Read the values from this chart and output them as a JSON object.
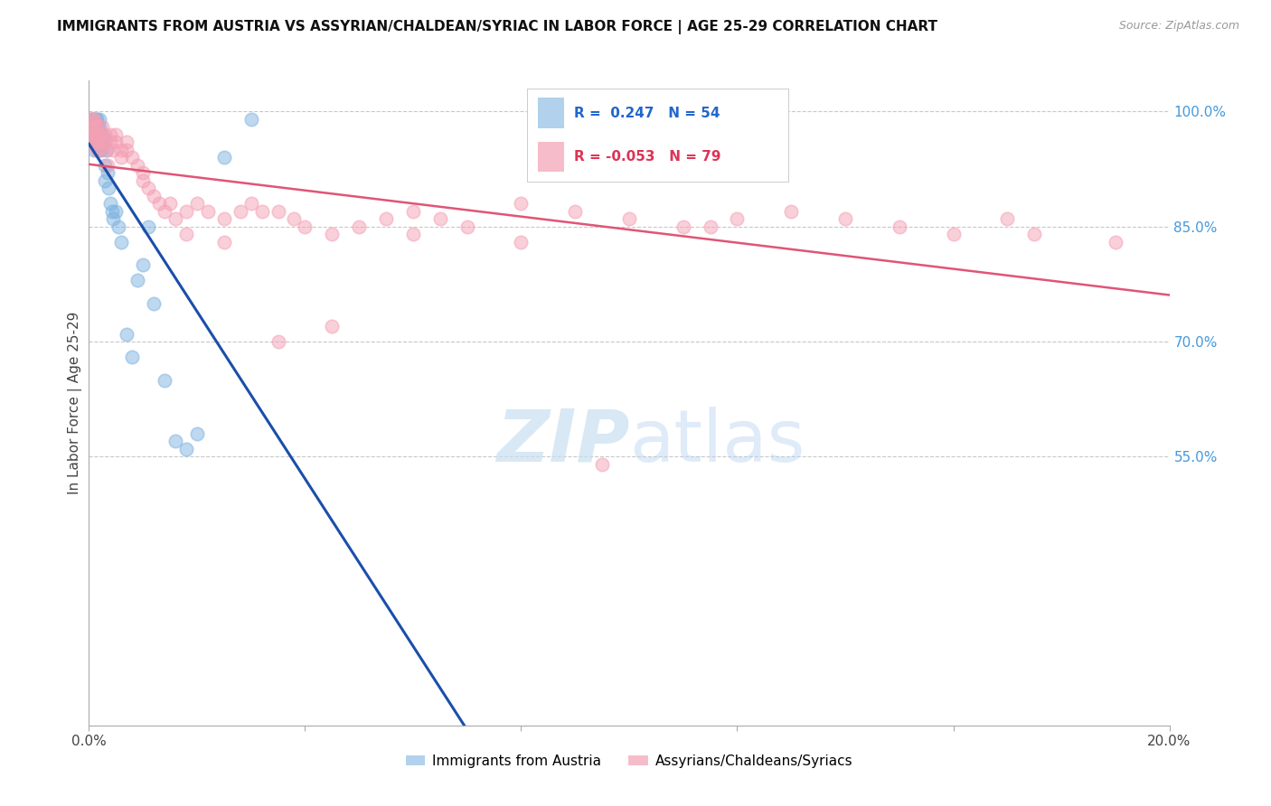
{
  "title": "IMMIGRANTS FROM AUSTRIA VS ASSYRIAN/CHALDEAN/SYRIAC IN LABOR FORCE | AGE 25-29 CORRELATION CHART",
  "source": "Source: ZipAtlas.com",
  "ylabel": "In Labor Force | Age 25-29",
  "xlim": [
    0.0,
    0.2
  ],
  "ylim": [
    0.2,
    1.04
  ],
  "xticks": [
    0.0,
    0.04,
    0.08,
    0.12,
    0.16,
    0.2
  ],
  "xticklabels": [
    "0.0%",
    "",
    "",
    "",
    "",
    "20.0%"
  ],
  "yticks_right": [
    0.55,
    0.7,
    0.85,
    1.0
  ],
  "ytick_right_labels": [
    "55.0%",
    "70.0%",
    "85.0%",
    "100.0%"
  ],
  "grid_color": "#c8c8c8",
  "background_color": "#ffffff",
  "austria_color": "#7eb3e0",
  "assyrian_color": "#f4a0b4",
  "trend_austria_color": "#1a4faa",
  "trend_assyrian_color": "#e05575",
  "legend_label_austria": "Immigrants from Austria",
  "legend_label_assyrian": "Assyrians/Chaldeans/Syriacs",
  "austria_x": [
    0.0002,
    0.0003,
    0.0004,
    0.0005,
    0.0006,
    0.0006,
    0.0007,
    0.0007,
    0.0008,
    0.0008,
    0.0009,
    0.0009,
    0.001,
    0.001,
    0.001,
    0.0012,
    0.0012,
    0.0013,
    0.0014,
    0.0015,
    0.0015,
    0.0016,
    0.0017,
    0.0018,
    0.002,
    0.002,
    0.0021,
    0.0022,
    0.0023,
    0.0025,
    0.0026,
    0.003,
    0.003,
    0.0032,
    0.0035,
    0.0036,
    0.004,
    0.0042,
    0.0045,
    0.005,
    0.0055,
    0.006,
    0.007,
    0.008,
    0.009,
    0.01,
    0.011,
    0.012,
    0.014,
    0.016,
    0.018,
    0.02,
    0.025,
    0.03
  ],
  "austria_y": [
    0.97,
    0.99,
    0.98,
    0.97,
    0.99,
    0.98,
    0.98,
    0.97,
    0.99,
    0.98,
    0.99,
    0.98,
    0.97,
    0.96,
    0.95,
    0.99,
    0.97,
    0.96,
    0.98,
    0.99,
    0.97,
    0.98,
    0.96,
    0.95,
    0.99,
    0.98,
    0.97,
    0.96,
    0.95,
    0.97,
    0.96,
    0.93,
    0.91,
    0.95,
    0.92,
    0.9,
    0.88,
    0.87,
    0.86,
    0.87,
    0.85,
    0.83,
    0.71,
    0.68,
    0.78,
    0.8,
    0.85,
    0.75,
    0.65,
    0.57,
    0.56,
    0.58,
    0.94,
    0.99
  ],
  "assyrian_x": [
    0.0002,
    0.0003,
    0.0004,
    0.0005,
    0.0006,
    0.0007,
    0.0008,
    0.0009,
    0.001,
    0.0011,
    0.0012,
    0.0013,
    0.0014,
    0.0015,
    0.0016,
    0.0017,
    0.0018,
    0.002,
    0.0022,
    0.0025,
    0.003,
    0.003,
    0.0032,
    0.0035,
    0.004,
    0.004,
    0.0045,
    0.005,
    0.005,
    0.006,
    0.006,
    0.007,
    0.007,
    0.008,
    0.009,
    0.01,
    0.01,
    0.011,
    0.012,
    0.013,
    0.014,
    0.015,
    0.016,
    0.018,
    0.02,
    0.022,
    0.025,
    0.028,
    0.03,
    0.032,
    0.035,
    0.038,
    0.04,
    0.045,
    0.05,
    0.055,
    0.06,
    0.065,
    0.07,
    0.08,
    0.09,
    0.1,
    0.11,
    0.12,
    0.13,
    0.14,
    0.15,
    0.16,
    0.17,
    0.175,
    0.018,
    0.025,
    0.035,
    0.045,
    0.06,
    0.08,
    0.095,
    0.115,
    0.19
  ],
  "assyrian_y": [
    0.97,
    0.98,
    0.97,
    0.99,
    0.98,
    0.99,
    0.97,
    0.96,
    0.99,
    0.98,
    0.97,
    0.96,
    0.95,
    0.98,
    0.97,
    0.96,
    0.95,
    0.97,
    0.96,
    0.98,
    0.97,
    0.96,
    0.95,
    0.93,
    0.97,
    0.96,
    0.95,
    0.97,
    0.96,
    0.95,
    0.94,
    0.96,
    0.95,
    0.94,
    0.93,
    0.92,
    0.91,
    0.9,
    0.89,
    0.88,
    0.87,
    0.88,
    0.86,
    0.87,
    0.88,
    0.87,
    0.86,
    0.87,
    0.88,
    0.87,
    0.87,
    0.86,
    0.85,
    0.84,
    0.85,
    0.86,
    0.87,
    0.86,
    0.85,
    0.88,
    0.87,
    0.86,
    0.85,
    0.86,
    0.87,
    0.86,
    0.85,
    0.84,
    0.86,
    0.84,
    0.84,
    0.83,
    0.7,
    0.72,
    0.84,
    0.83,
    0.54,
    0.85,
    0.83
  ]
}
